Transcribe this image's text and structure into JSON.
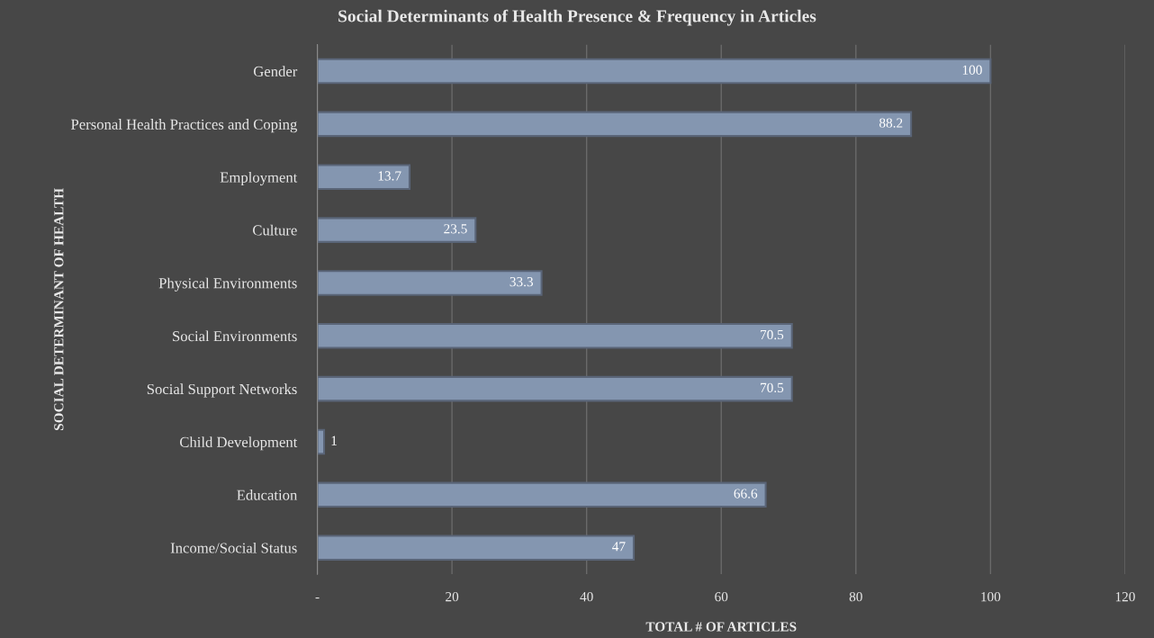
{
  "chart_data": {
    "type": "bar",
    "orientation": "horizontal",
    "title": "Social Determinants of Health Presence & Frequency in Articles",
    "xlabel": "TOTAL # OF ARTICLES",
    "ylabel": "SOCIAL DETERMINANT OF HEALTH",
    "categories": [
      "Gender",
      "Personal Health Practices and Coping",
      "Employment",
      "Culture",
      "Physical Environments",
      "Social Environments",
      "Social Support Networks",
      "Child Development",
      "Education",
      "Income/Social Status"
    ],
    "values": [
      100,
      88.2,
      13.7,
      23.5,
      33.3,
      70.5,
      70.5,
      1,
      66.6,
      47
    ],
    "color": "#8496b0",
    "xlim": [
      0,
      120
    ],
    "xticks": [
      {
        "value": 0,
        "label": "-"
      },
      20,
      40,
      60,
      80,
      100,
      120
    ],
    "grid": "x",
    "data_labels": true
  }
}
